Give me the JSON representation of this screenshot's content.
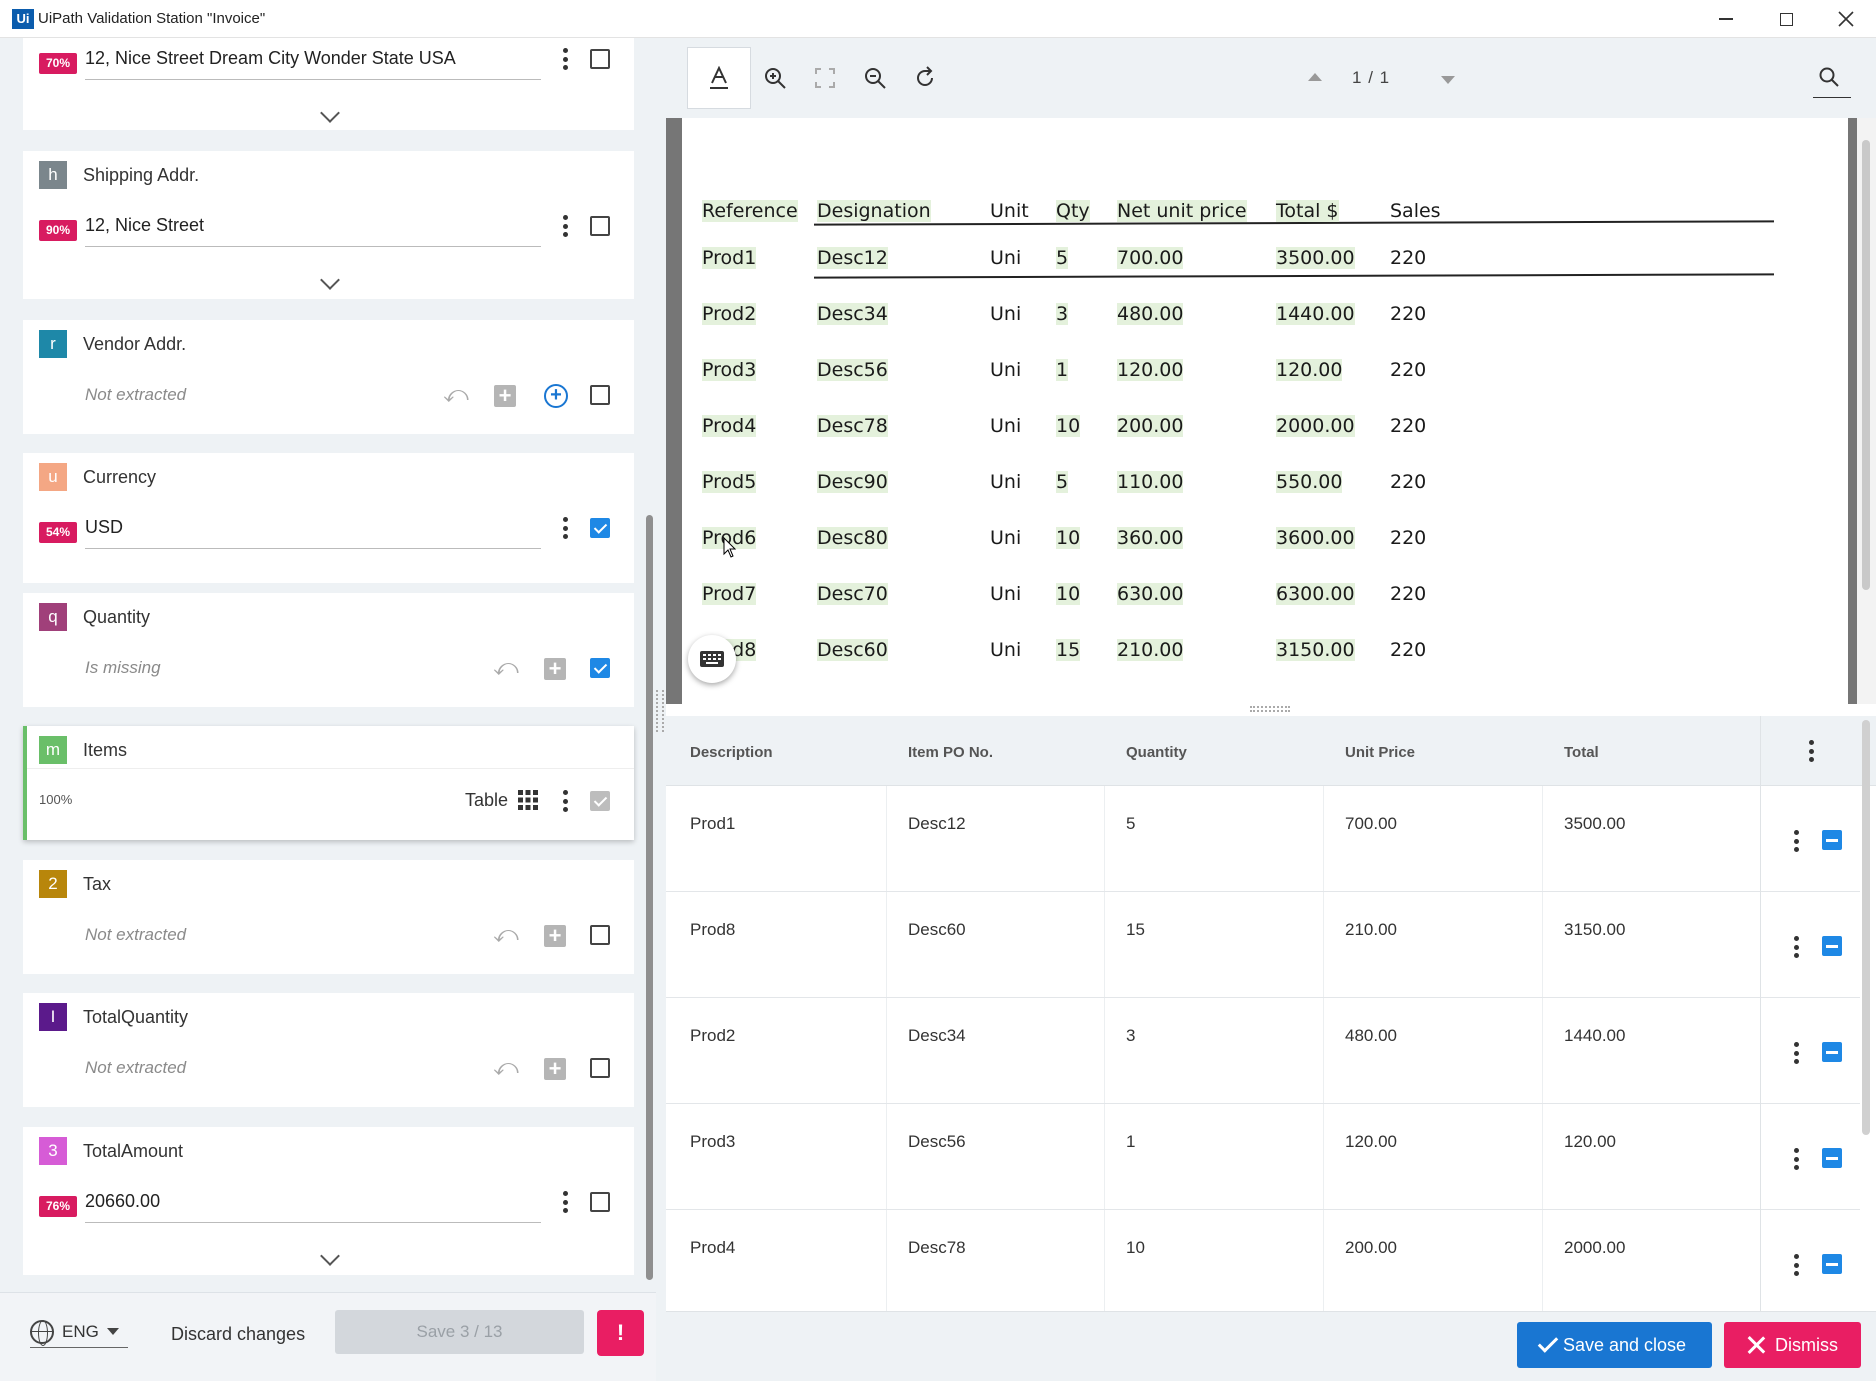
{
  "window": {
    "logo": "Ui",
    "title": "UiPath Validation Station \"Invoice\""
  },
  "fields": [
    {
      "badge_letter": "",
      "name": "",
      "confidence": "70%",
      "value": "12, Nice Street Dream City Wonder State USA",
      "checked": false,
      "expandable": true
    },
    {
      "badge_letter": "h",
      "badge_color": "#7b868c",
      "name": "Shipping Addr.",
      "confidence": "90%",
      "value": "12, Nice Street",
      "checked": false,
      "expandable": true
    },
    {
      "badge_letter": "r",
      "badge_color": "#1e88a8",
      "name": "Vendor Addr.",
      "status": "Not extracted",
      "checked": false
    },
    {
      "badge_letter": "u",
      "badge_color": "#f4a784",
      "name": "Currency",
      "confidence": "54%",
      "value": "USD",
      "checked": true
    },
    {
      "badge_letter": "q",
      "badge_color": "#a0407a",
      "name": "Quantity",
      "status": "Is missing",
      "checked": true
    },
    {
      "badge_letter": "m",
      "badge_color": "#6abf69",
      "name": "Items",
      "confidence": "100%",
      "type_label": "Table",
      "checked": true
    },
    {
      "badge_letter": "2",
      "badge_color": "#b8860b",
      "name": "Tax",
      "status": "Not extracted",
      "checked": false
    },
    {
      "badge_letter": "I",
      "badge_color": "#5b1a8b",
      "name": "TotalQuantity",
      "status": "Not extracted",
      "checked": false
    },
    {
      "badge_letter": "3",
      "badge_color": "#d65cd6",
      "name": "TotalAmount",
      "confidence": "76%",
      "value": "20660.00",
      "checked": false,
      "expandable": true
    }
  ],
  "footer_left": {
    "language": "ENG",
    "discard_label": "Discard changes",
    "save_label": "Save 3 / 13",
    "alert_label": "!"
  },
  "viewer": {
    "page_current": "1",
    "page_separator": "/",
    "page_total": "1",
    "tools": [
      "text-select-icon",
      "zoom-in-icon",
      "fit-page-icon",
      "zoom-out-icon",
      "rotate-icon"
    ]
  },
  "document": {
    "columns": [
      "Reference",
      "Designation",
      "Unit",
      "Qty",
      "Net unit price",
      "Total $",
      "Sales"
    ],
    "rows": [
      [
        "Prod1",
        "Desc12",
        "Uni",
        "5",
        "700.00",
        "3500.00",
        "220"
      ],
      [
        "Prod2",
        "Desc34",
        "Uni",
        "3",
        "480.00",
        "1440.00",
        "220"
      ],
      [
        "Prod3",
        "Desc56",
        "Uni",
        "1",
        "120.00",
        "120.00",
        "220"
      ],
      [
        "Prod4",
        "Desc78",
        "Uni",
        "10",
        "200.00",
        "2000.00",
        "220"
      ],
      [
        "Prod5",
        "Desc90",
        "Uni",
        "5",
        "110.00",
        "550.00",
        "220"
      ],
      [
        "Prod6",
        "Desc80",
        "Uni",
        "10",
        "360.00",
        "3600.00",
        "220"
      ],
      [
        "Prod7",
        "Desc70",
        "Uni",
        "10",
        "630.00",
        "6300.00",
        "220"
      ],
      [
        "Prod8",
        "Desc60",
        "Uni",
        "15",
        "210.00",
        "3150.00",
        "220"
      ]
    ]
  },
  "items_table": {
    "headers": [
      "Description",
      "Item PO No.",
      "Quantity",
      "Unit Price",
      "Total"
    ],
    "rows": [
      [
        "Prod1",
        "Desc12",
        "5",
        "700.00",
        "3500.00"
      ],
      [
        "Prod8",
        "Desc60",
        "15",
        "210.00",
        "3150.00"
      ],
      [
        "Prod2",
        "Desc34",
        "3",
        "480.00",
        "1440.00"
      ],
      [
        "Prod3",
        "Desc56",
        "1",
        "120.00",
        "120.00"
      ],
      [
        "Prod4",
        "Desc78",
        "10",
        "200.00",
        "2000.00"
      ]
    ]
  },
  "footer_right": {
    "save_close_label": "Save and close",
    "dismiss_label": "Dismiss"
  },
  "colors": {
    "accent": "#1976d2",
    "danger": "#e91e63",
    "confidence": "#d81b60",
    "highlight": "#e4f1dc"
  }
}
